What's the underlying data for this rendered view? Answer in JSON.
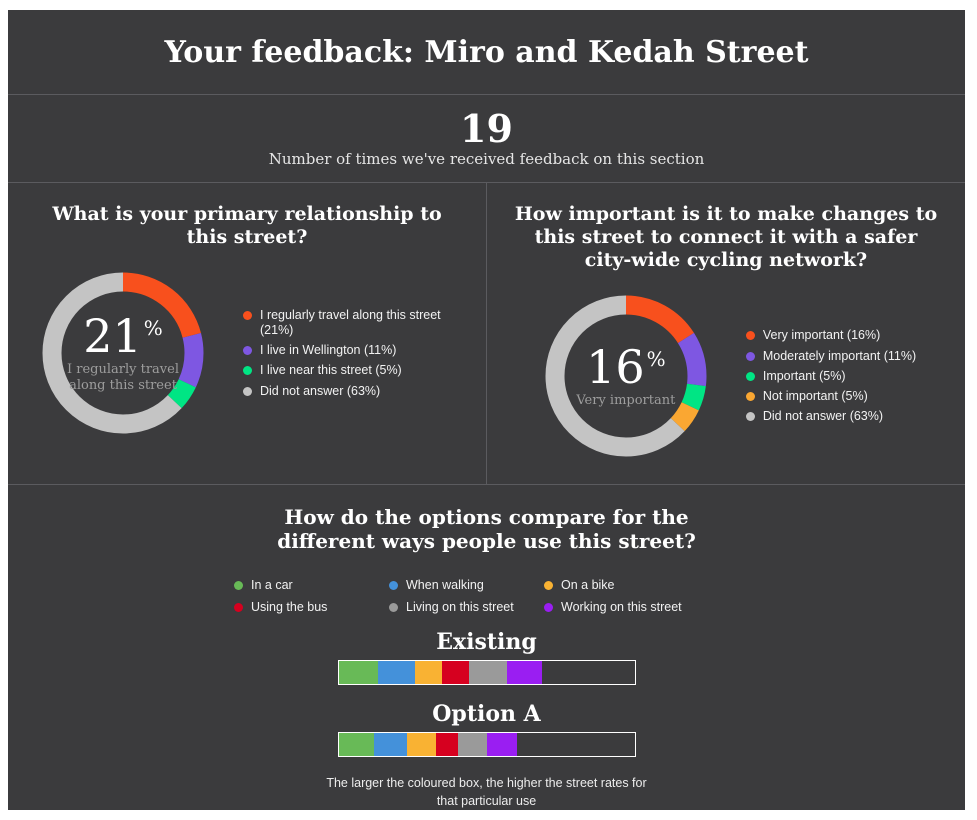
{
  "colors": {
    "page_bg": "#ffffff",
    "panel_bg": "#3b3b3d",
    "divider": "#5b5b5f",
    "bar_border": "#ffffff"
  },
  "header": {
    "title": "Your feedback: Miro and Kedah Street"
  },
  "stat": {
    "value": "19",
    "caption": "Number of times we've received feedback on this section"
  },
  "chart_data": [
    {
      "type": "donut",
      "title": "What is your primary relationship to this street?",
      "center_value": "21",
      "center_unit": "%",
      "center_label": "I regularly travel along this street",
      "legend_position": "right",
      "segments": [
        {
          "label": "I regularly travel along this street",
          "pct": 21,
          "color": "#f8501d"
        },
        {
          "label": "I live in Wellington",
          "pct": 11,
          "color": "#7e57e2"
        },
        {
          "label": "I live near this street",
          "pct": 5,
          "color": "#00e584"
        },
        {
          "label": "Did not answer",
          "pct": 63,
          "color": "#c4c4c4"
        }
      ]
    },
    {
      "type": "donut",
      "title": "How important is it to make changes to this street to connect it with a safer city-wide cycling network?",
      "center_value": "16",
      "center_unit": "%",
      "center_label": "Very important",
      "legend_position": "right",
      "segments": [
        {
          "label": "Very important",
          "pct": 16,
          "color": "#f8501d"
        },
        {
          "label": "Moderately important",
          "pct": 11,
          "color": "#7e57e2"
        },
        {
          "label": "Important",
          "pct": 5,
          "color": "#00e584"
        },
        {
          "label": "Not important",
          "pct": 5,
          "color": "#faa732"
        },
        {
          "label": "Did not answer",
          "pct": 63,
          "color": "#c4c4c4"
        }
      ]
    },
    {
      "type": "stacked-bar",
      "title": "How do the options compare for the different ways people use this street?",
      "note": "The larger the coloured box, the higher the street rates for that particular use",
      "legend": [
        {
          "label": "In a car",
          "color": "#68ba57"
        },
        {
          "label": "When walking",
          "color": "#4491da"
        },
        {
          "label": "On a bike",
          "color": "#f9b233"
        },
        {
          "label": "Using the bus",
          "color": "#d6001f"
        },
        {
          "label": "Living on this street",
          "color": "#9a9a9a"
        },
        {
          "label": "Working on this street",
          "color": "#9a1ef2"
        }
      ],
      "bars": [
        {
          "label": "Existing",
          "segments": [
            {
              "use": "In a car",
              "color": "#68ba57",
              "width_pct": 13.5
            },
            {
              "use": "When walking",
              "color": "#4491da",
              "width_pct": 12.4
            },
            {
              "use": "On a bike",
              "color": "#f9b233",
              "width_pct": 9.1
            },
            {
              "use": "Using the bus",
              "color": "#d6001f",
              "width_pct": 9.1
            },
            {
              "use": "Living on this street",
              "color": "#9a9a9a",
              "width_pct": 12.7
            },
            {
              "use": "Working on this street",
              "color": "#9a1ef2",
              "width_pct": 11.8
            }
          ]
        },
        {
          "label": "Option A",
          "segments": [
            {
              "use": "In a car",
              "color": "#68ba57",
              "width_pct": 12.1
            },
            {
              "use": "When walking",
              "color": "#4491da",
              "width_pct": 11.1
            },
            {
              "use": "On a bike",
              "color": "#f9b233",
              "width_pct": 9.8
            },
            {
              "use": "Using the bus",
              "color": "#d6001f",
              "width_pct": 7.4
            },
            {
              "use": "Living on this street",
              "color": "#9a9a9a",
              "width_pct": 9.8
            },
            {
              "use": "Working on this street",
              "color": "#9a1ef2",
              "width_pct": 10.1
            }
          ]
        }
      ]
    }
  ]
}
